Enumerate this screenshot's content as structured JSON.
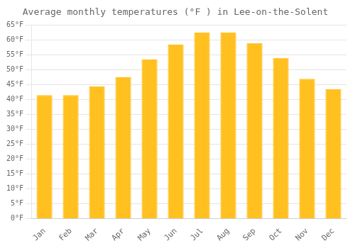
{
  "chart_data": {
    "type": "bar",
    "title": "Average monthly temperatures (°F ) in Lee-on-the-Solent",
    "categories": [
      "Jan",
      "Feb",
      "Mar",
      "Apr",
      "May",
      "Jun",
      "Jul",
      "Aug",
      "Sep",
      "Oct",
      "Nov",
      "Dec"
    ],
    "values": [
      41.5,
      41.5,
      44.5,
      47.5,
      53.5,
      58.5,
      62.5,
      62.5,
      59.0,
      54.0,
      47.0,
      43.5
    ],
    "color": "#FFC020",
    "ylim": [
      0,
      65
    ],
    "yticks": [
      {
        "value": 0,
        "label": "0°F"
      },
      {
        "value": 5,
        "label": "5°F"
      },
      {
        "value": 10,
        "label": "10°F"
      },
      {
        "value": 15,
        "label": "15°F"
      },
      {
        "value": 20,
        "label": "20°F"
      },
      {
        "value": 25,
        "label": "25°F"
      },
      {
        "value": 30,
        "label": "30°F"
      },
      {
        "value": 35,
        "label": "35°F"
      },
      {
        "value": 40,
        "label": "40°F"
      },
      {
        "value": 45,
        "label": "45°F"
      },
      {
        "value": 50,
        "label": "50°F"
      },
      {
        "value": 55,
        "label": "55°F"
      },
      {
        "value": 60,
        "label": "60°F"
      },
      {
        "value": 65,
        "label": "65°F"
      }
    ],
    "grid": true
  }
}
